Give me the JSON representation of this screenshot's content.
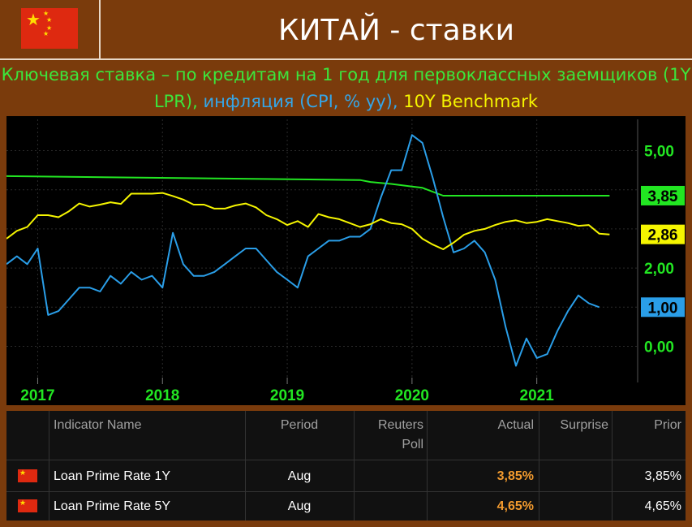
{
  "header": {
    "title": "КИТАЙ - ставки",
    "flag_icon": "china-flag-icon"
  },
  "subtitle": {
    "green": "Ключевая ставка – по кредитам на 1 год для первоклассных заемщиков (1Y LPR),",
    "blue": "инфляция (CPI, % yy),",
    "yellow": "10Y Benchmark"
  },
  "colors": {
    "lpr": "#22e622",
    "cpi": "#2a9ee8",
    "bond": "#f5f500",
    "background": "#7a3b0c"
  },
  "chart_data": {
    "type": "line",
    "xlabels": [
      "2017",
      "2018",
      "2019",
      "2020",
      "2021"
    ],
    "ytick_labels": [
      "5,00",
      "2,00",
      "1,00",
      "0,00"
    ],
    "ylim": [
      -0.8,
      5.8
    ],
    "grid": true,
    "last_value_labels": [
      "3,85",
      "2,86",
      "1,00"
    ],
    "series": [
      {
        "name": "1Y LPR",
        "color": "#22e622",
        "points": [
          [
            "2016-10",
            4.35
          ],
          [
            "2019-08",
            4.25
          ],
          [
            "2019-09",
            4.2
          ],
          [
            "2019-11",
            4.15
          ],
          [
            "2020-02",
            4.05
          ],
          [
            "2020-04",
            3.85
          ],
          [
            "2021-08",
            3.85
          ]
        ]
      },
      {
        "name": "CPI, % yy",
        "color": "#2a9ee8",
        "points": [
          [
            "2016-10",
            2.1
          ],
          [
            "2016-11",
            2.3
          ],
          [
            "2016-12",
            2.1
          ],
          [
            "2017-01",
            2.5
          ],
          [
            "2017-02",
            0.8
          ],
          [
            "2017-03",
            0.9
          ],
          [
            "2017-04",
            1.2
          ],
          [
            "2017-05",
            1.5
          ],
          [
            "2017-06",
            1.5
          ],
          [
            "2017-07",
            1.4
          ],
          [
            "2017-08",
            1.8
          ],
          [
            "2017-09",
            1.6
          ],
          [
            "2017-10",
            1.9
          ],
          [
            "2017-11",
            1.7
          ],
          [
            "2017-12",
            1.8
          ],
          [
            "2018-01",
            1.5
          ],
          [
            "2018-02",
            2.9
          ],
          [
            "2018-03",
            2.1
          ],
          [
            "2018-04",
            1.8
          ],
          [
            "2018-05",
            1.8
          ],
          [
            "2018-06",
            1.9
          ],
          [
            "2018-07",
            2.1
          ],
          [
            "2018-08",
            2.3
          ],
          [
            "2018-09",
            2.5
          ],
          [
            "2018-10",
            2.5
          ],
          [
            "2018-11",
            2.2
          ],
          [
            "2018-12",
            1.9
          ],
          [
            "2019-01",
            1.7
          ],
          [
            "2019-02",
            1.5
          ],
          [
            "2019-03",
            2.3
          ],
          [
            "2019-04",
            2.5
          ],
          [
            "2019-05",
            2.7
          ],
          [
            "2019-06",
            2.7
          ],
          [
            "2019-07",
            2.8
          ],
          [
            "2019-08",
            2.8
          ],
          [
            "2019-09",
            3.0
          ],
          [
            "2019-10",
            3.8
          ],
          [
            "2019-11",
            4.5
          ],
          [
            "2019-12",
            4.5
          ],
          [
            "2020-01",
            5.4
          ],
          [
            "2020-02",
            5.2
          ],
          [
            "2020-03",
            4.3
          ],
          [
            "2020-04",
            3.3
          ],
          [
            "2020-05",
            2.4
          ],
          [
            "2020-06",
            2.5
          ],
          [
            "2020-07",
            2.7
          ],
          [
            "2020-08",
            2.4
          ],
          [
            "2020-09",
            1.7
          ],
          [
            "2020-10",
            0.5
          ],
          [
            "2020-11",
            -0.5
          ],
          [
            "2020-12",
            0.2
          ],
          [
            "2021-01",
            -0.3
          ],
          [
            "2021-02",
            -0.2
          ],
          [
            "2021-03",
            0.4
          ],
          [
            "2021-04",
            0.9
          ],
          [
            "2021-05",
            1.3
          ],
          [
            "2021-06",
            1.1
          ],
          [
            "2021-07",
            1.0
          ]
        ]
      },
      {
        "name": "10Y Benchmark",
        "color": "#f5f500",
        "points": [
          [
            "2016-10",
            2.75
          ],
          [
            "2016-11",
            2.95
          ],
          [
            "2016-12",
            3.05
          ],
          [
            "2017-01",
            3.35
          ],
          [
            "2017-02",
            3.35
          ],
          [
            "2017-03",
            3.3
          ],
          [
            "2017-04",
            3.45
          ],
          [
            "2017-05",
            3.65
          ],
          [
            "2017-06",
            3.57
          ],
          [
            "2017-07",
            3.62
          ],
          [
            "2017-08",
            3.68
          ],
          [
            "2017-09",
            3.64
          ],
          [
            "2017-10",
            3.9
          ],
          [
            "2017-11",
            3.9
          ],
          [
            "2017-12",
            3.9
          ],
          [
            "2018-01",
            3.92
          ],
          [
            "2018-02",
            3.84
          ],
          [
            "2018-03",
            3.75
          ],
          [
            "2018-04",
            3.62
          ],
          [
            "2018-05",
            3.62
          ],
          [
            "2018-06",
            3.52
          ],
          [
            "2018-07",
            3.52
          ],
          [
            "2018-08",
            3.6
          ],
          [
            "2018-09",
            3.65
          ],
          [
            "2018-10",
            3.55
          ],
          [
            "2018-11",
            3.35
          ],
          [
            "2018-12",
            3.25
          ],
          [
            "2019-01",
            3.1
          ],
          [
            "2019-02",
            3.2
          ],
          [
            "2019-03",
            3.05
          ],
          [
            "2019-04",
            3.38
          ],
          [
            "2019-05",
            3.3
          ],
          [
            "2019-06",
            3.25
          ],
          [
            "2019-07",
            3.15
          ],
          [
            "2019-08",
            3.05
          ],
          [
            "2019-09",
            3.12
          ],
          [
            "2019-10",
            3.25
          ],
          [
            "2019-11",
            3.15
          ],
          [
            "2019-12",
            3.12
          ],
          [
            "2020-01",
            3.0
          ],
          [
            "2020-02",
            2.75
          ],
          [
            "2020-03",
            2.6
          ],
          [
            "2020-04",
            2.48
          ],
          [
            "2020-05",
            2.65
          ],
          [
            "2020-06",
            2.85
          ],
          [
            "2020-07",
            2.95
          ],
          [
            "2020-08",
            3.0
          ],
          [
            "2020-09",
            3.1
          ],
          [
            "2020-10",
            3.18
          ],
          [
            "2020-11",
            3.22
          ],
          [
            "2020-12",
            3.15
          ],
          [
            "2021-01",
            3.18
          ],
          [
            "2021-02",
            3.25
          ],
          [
            "2021-03",
            3.2
          ],
          [
            "2021-04",
            3.15
          ],
          [
            "2021-05",
            3.08
          ],
          [
            "2021-06",
            3.1
          ],
          [
            "2021-07",
            2.88
          ],
          [
            "2021-08",
            2.86
          ]
        ]
      }
    ]
  },
  "table": {
    "headers": {
      "name": "Indicator Name",
      "period": "Period",
      "poll_line1": "Reuters",
      "poll_line2": "Poll",
      "actual": "Actual",
      "surprise": "Surprise",
      "prior": "Prior"
    },
    "rows": [
      {
        "flag_icon": "china-flag-icon",
        "name": "Loan Prime Rate 1Y",
        "period": "Aug",
        "poll": "",
        "actual": "3,85%",
        "surprise": "",
        "prior": "3,85%"
      },
      {
        "flag_icon": "china-flag-icon",
        "name": "Loan Prime Rate 5Y",
        "period": "Aug",
        "poll": "",
        "actual": "4,65%",
        "surprise": "",
        "prior": "4,65%"
      }
    ]
  }
}
